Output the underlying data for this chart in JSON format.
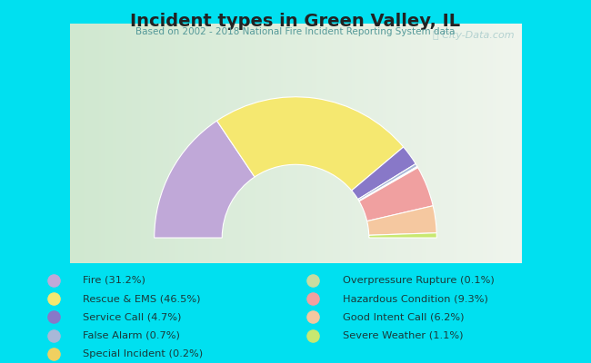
{
  "title": "Incident types in Green Valley, IL",
  "subtitle": "Based on 2002 - 2018 National Fire Incident Reporting System data",
  "watermark": "ⓘ City-Data.com",
  "chart_bg_left": "#d8ead8",
  "chart_bg_right": "#f0f5ee",
  "outer_background": "#00e0f0",
  "categories": [
    "Fire",
    "Rescue & EMS",
    "Service Call",
    "False Alarm",
    "Special Incident",
    "Overpressure Rupture",
    "Hazardous Condition",
    "Good Intent Call",
    "Severe Weather"
  ],
  "values": [
    31.2,
    46.5,
    4.7,
    0.7,
    0.2,
    0.1,
    9.3,
    6.2,
    1.1
  ],
  "colors": [
    "#c0a8d8",
    "#f5e870",
    "#8878c8",
    "#a8b8d8",
    "#f0d060",
    "#c8dca0",
    "#f0a0a0",
    "#f5c8a0",
    "#c8e870"
  ],
  "legend_labels": [
    "Fire (31.2%)",
    "Rescue & EMS (46.5%)",
    "Service Call (4.7%)",
    "False Alarm (0.7%)",
    "Special Incident (0.2%)",
    "Overpressure Rupture (0.1%)",
    "Hazardous Condition (9.3%)",
    "Good Intent Call (6.2%)",
    "Severe Weather (1.1%)"
  ],
  "fig_width": 6.5,
  "fig_height": 4.0,
  "dpi": 100
}
